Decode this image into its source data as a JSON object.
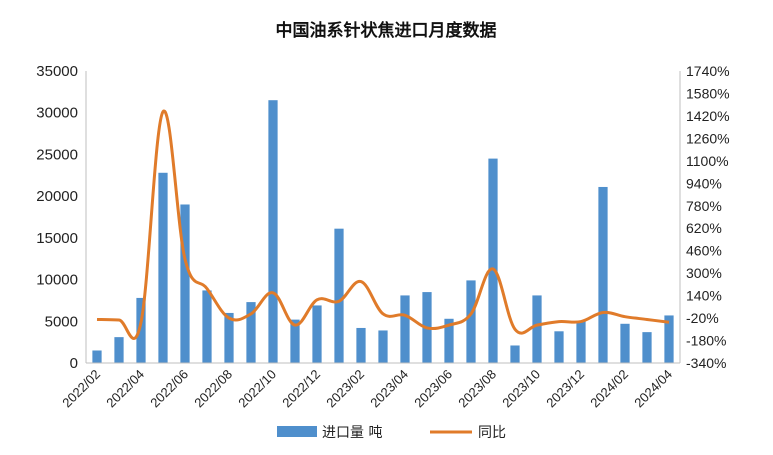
{
  "chart_data": {
    "type": "bar+line",
    "title": "中国油系针状焦进口月度数据",
    "categories": [
      "2022/02",
      "2022/03",
      "2022/04",
      "2022/05",
      "2022/06",
      "2022/07",
      "2022/08",
      "2022/09",
      "2022/10",
      "2022/11",
      "2022/12",
      "2023/01",
      "2023/02",
      "2023/03",
      "2023/04",
      "2023/05",
      "2023/06",
      "2023/07",
      "2023/08",
      "2023/09",
      "2023/10",
      "2023/11",
      "2023/12",
      "2024/01",
      "2024/02",
      "2024/03",
      "2024/04"
    ],
    "x_tick_labels": [
      "2022/02",
      "2022/04",
      "2022/06",
      "2022/08",
      "2022/10",
      "2022/12",
      "2023/02",
      "2023/04",
      "2023/06",
      "2023/08",
      "2023/10",
      "2023/12",
      "2024/02",
      "2024/04"
    ],
    "series": [
      {
        "name": "进口量 吨",
        "type": "bar",
        "axis": "left",
        "color": "#4f8fcc",
        "values": [
          1500,
          3100,
          7800,
          22800,
          19000,
          8700,
          6000,
          7300,
          31500,
          5200,
          6900,
          16100,
          4200,
          3900,
          8100,
          8500,
          5300,
          9900,
          24500,
          2100,
          8100,
          3800,
          5000,
          21100,
          4700,
          3700,
          5700
        ]
      },
      {
        "name": "同比",
        "type": "line",
        "axis": "right",
        "color": "#e07b2a",
        "values": [
          -30,
          -34,
          -50,
          1450,
          400,
          190,
          -20,
          10,
          160,
          -70,
          110,
          100,
          240,
          10,
          0,
          -90,
          -70,
          10,
          330,
          -100,
          -70,
          -45,
          -45,
          20,
          -10,
          -30,
          -50
        ]
      }
    ],
    "y_left": {
      "ylim": [
        0,
        35000
      ],
      "ticks": [
        "0",
        "5000",
        "10000",
        "15000",
        "20000",
        "25000",
        "30000",
        "35000"
      ]
    },
    "y_right": {
      "ylim": [
        -340,
        1740
      ],
      "ticks": [
        "-340%",
        "-180%",
        "-20%",
        "140%",
        "300%",
        "460%",
        "620%",
        "780%",
        "940%",
        "1100%",
        "1260%",
        "1420%",
        "1580%",
        "1740%"
      ]
    },
    "grid": false,
    "legend_position": "bottom"
  }
}
